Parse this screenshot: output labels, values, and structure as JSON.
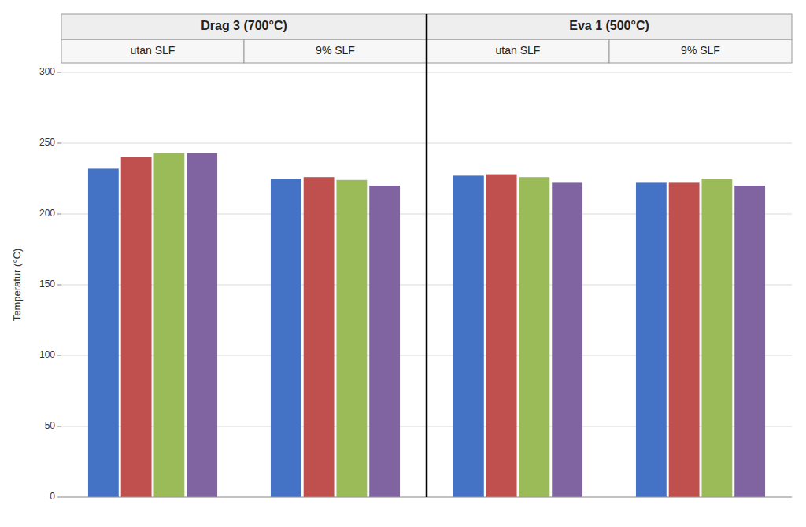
{
  "chart_data": [
    {
      "type": "bar",
      "title": "Drag 3 (700°C)",
      "y_label": "Temperatur (°C)",
      "categories": [
        "utan SLF",
        "9% SLF"
      ],
      "series": [
        {
          "color": "#4472C4",
          "values": [
            232,
            225
          ]
        },
        {
          "color": "#C0504D",
          "values": [
            240,
            226
          ]
        },
        {
          "color": "#9BBB59",
          "values": [
            243,
            224
          ]
        },
        {
          "color": "#8064A2",
          "values": [
            243,
            220
          ]
        }
      ],
      "ylim": [
        0,
        300
      ],
      "yticks": [
        0,
        50,
        100,
        150,
        200,
        250,
        300
      ],
      "grid": true
    },
    {
      "type": "bar",
      "title": "Eva 1 (500°C)",
      "categories": [
        "utan SLF",
        "9% SLF"
      ],
      "series": [
        {
          "color": "#4472C4",
          "values": [
            227,
            222
          ]
        },
        {
          "color": "#C0504D",
          "values": [
            228,
            222
          ]
        },
        {
          "color": "#9BBB59",
          "values": [
            226,
            225
          ]
        },
        {
          "color": "#8064A2",
          "values": [
            222,
            220
          ]
        }
      ],
      "ylim": [
        0,
        300
      ],
      "yticks": [
        0,
        50,
        100,
        150,
        200,
        250,
        300
      ],
      "grid": true,
      "tick_labels": false
    }
  ]
}
